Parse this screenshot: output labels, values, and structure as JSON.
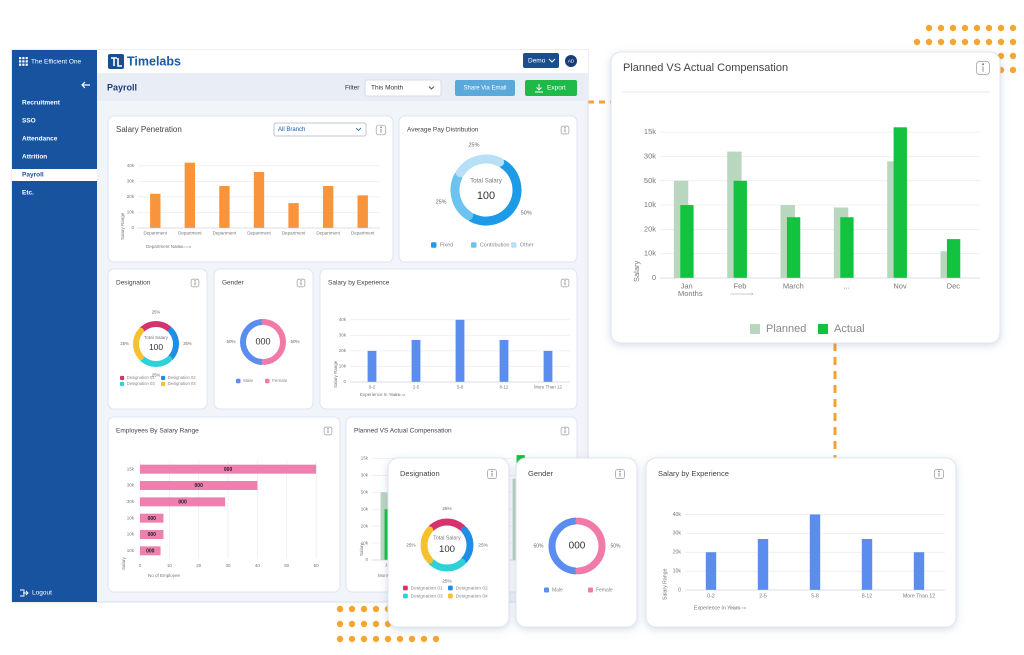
{
  "sidebar": {
    "brand": "The Efficient One",
    "items": [
      "Recruitment",
      "SSO",
      "Attendance",
      "Attrition",
      "Payroll",
      "Etc."
    ],
    "active": 4,
    "logout": "Logout"
  },
  "header": {
    "logo": "Timelabs",
    "user": "Demo",
    "avatar": "AD"
  },
  "toolbar": {
    "title": "Payroll",
    "filter_label": "Filter",
    "filter_value": "This Month",
    "share": "Share Via Email",
    "export": "Export"
  },
  "salary_penetration": {
    "type": "bar",
    "title": "Salary Penetration",
    "dropdown": "All Branch",
    "categories": [
      "Department",
      "Department",
      "Department",
      "Department",
      "Department",
      "Department",
      "Department"
    ],
    "values": [
      22000,
      42000,
      27000,
      36000,
      16000,
      27000,
      21000
    ],
    "color": "#f7943c",
    "ylim": [
      0,
      45000
    ],
    "yticks": [
      0,
      {
        "value": 10000,
        "label": "10k"
      },
      {
        "value": 20000,
        "label": "20k"
      },
      {
        "value": 30000,
        "label": "30k"
      },
      {
        "value": 40000,
        "label": "40k"
      }
    ],
    "y_label": "Salary Range",
    "x_label": "Department Name"
  },
  "average_pay": {
    "type": "donut",
    "title": "Average Pay Distribution",
    "center_label": "Total Salary",
    "center_value": 100,
    "categories": [
      "Fixed",
      "Contribution",
      "Other"
    ],
    "values": [
      50,
      25,
      25
    ],
    "value_labels": [
      "50%",
      "25%",
      "25%"
    ],
    "colors": [
      "#1e9be6",
      "#6cc3f0",
      "#b7dff5"
    ]
  },
  "designation": {
    "type": "donut",
    "title": "Designation",
    "center_label": "Total Salary",
    "center_value": 100,
    "categories": [
      "Designation 01",
      "Designation 02",
      "Designation 03",
      "Designation 04"
    ],
    "values": [
      25,
      25,
      25,
      25
    ],
    "value_labels": [
      "25%",
      "25%",
      "25%",
      "25%"
    ],
    "colors": [
      "#d6336c",
      "#1e8ee6",
      "#2fd0d8",
      "#f5c12e"
    ]
  },
  "gender": {
    "type": "donut",
    "title": "Gender",
    "center_value": "000",
    "categories": [
      "Male",
      "Female"
    ],
    "values": [
      50,
      50
    ],
    "value_labels": [
      "50%",
      "50%"
    ],
    "colors": [
      "#5b8def",
      "#f07aa8"
    ]
  },
  "salary_by_experience": {
    "type": "bar",
    "title": "Salary by Experience",
    "categories": [
      "0-2",
      "2-5",
      "5-8",
      "8-12",
      "More Than 12"
    ],
    "values": [
      20000,
      27000,
      40000,
      27000,
      20000
    ],
    "color": "#5b8def",
    "ylim": [
      0,
      45000
    ],
    "yticks": [
      0,
      {
        "value": 10000,
        "label": "10k"
      },
      {
        "value": 20000,
        "label": "20k"
      },
      {
        "value": 30000,
        "label": "30k"
      },
      {
        "value": 40000,
        "label": "40k"
      }
    ],
    "y_label": "Salary Range",
    "x_label": "Experience In Years"
  },
  "employees_by_salary_range": {
    "type": "hbar",
    "title": "Employees By Salary Range",
    "categories": [
      "15k",
      "30k",
      "30k",
      "10k",
      "10k",
      "10k"
    ],
    "values": [
      60,
      40,
      29,
      8,
      8,
      7
    ],
    "bar_label": "000",
    "color": "#ee7fae",
    "xlim": [
      0,
      62
    ],
    "xticks": [
      0,
      10,
      20,
      30,
      40,
      50,
      60
    ],
    "x_label": "No of Employee",
    "y_label": "Salary"
  },
  "planned_vs_actual": {
    "type": "bar",
    "title": "Planned VS Actual Compensation",
    "categories": [
      "Jan",
      "Feb",
      "March",
      "...",
      "Nov",
      "Dec"
    ],
    "series": [
      {
        "name": "Planned",
        "color": "#b9d6be",
        "values": [
          4,
          5.2,
          3,
          2.9,
          4.8,
          1.1
        ]
      },
      {
        "name": "Actual",
        "color": "#13c23f",
        "values": [
          3,
          4,
          2.5,
          2.5,
          6.2,
          1.6
        ]
      }
    ],
    "ylim": [
      0,
      6.5
    ],
    "yticks": [
      0,
      {
        "value": 1,
        "label": "10k"
      },
      {
        "value": 2,
        "label": "20k"
      },
      {
        "value": 3,
        "label": "10k"
      },
      {
        "value": 4,
        "label": "50k"
      },
      {
        "value": 5,
        "label": "30k"
      },
      {
        "value": 6,
        "label": "15k"
      }
    ],
    "x_label": "Months",
    "y_label": "Salary"
  }
}
